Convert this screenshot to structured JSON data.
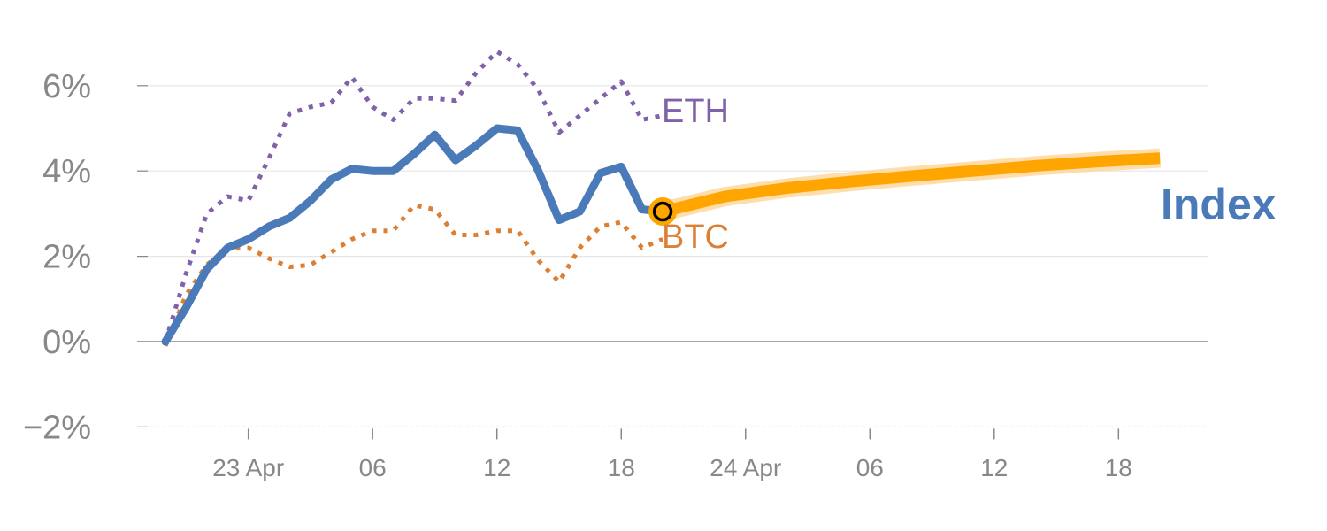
{
  "chart_data": {
    "type": "line",
    "title": "",
    "xlabel": "",
    "ylabel": "",
    "ylim": [
      -2,
      7
    ],
    "yticks": [
      -2,
      0,
      2,
      4,
      6
    ],
    "ytick_labels": [
      "−2%",
      "0%",
      "2%",
      "4%",
      "6%"
    ],
    "xticks": [
      {
        "i": 4,
        "label": "23 Apr"
      },
      {
        "i": 10,
        "label": "06"
      },
      {
        "i": 16,
        "label": "12"
      },
      {
        "i": 22,
        "label": "18"
      },
      {
        "i": 28,
        "label": "24 Apr"
      },
      {
        "i": 34,
        "label": "06"
      },
      {
        "i": 40,
        "label": "12"
      },
      {
        "i": 46,
        "label": "18"
      }
    ],
    "grid": true,
    "series": [
      {
        "name": "ETH",
        "color": "#8062a8",
        "style": "dotted",
        "x": [
          0,
          1,
          2,
          3,
          4,
          5,
          6,
          7,
          8,
          9,
          10,
          11,
          12,
          13,
          14,
          15,
          16,
          17,
          18,
          19,
          20,
          21,
          22,
          23,
          24
        ],
        "values": [
          0,
          1.6,
          3.0,
          3.4,
          3.3,
          4.3,
          5.35,
          5.5,
          5.6,
          6.2,
          5.5,
          5.2,
          5.7,
          5.7,
          5.65,
          6.3,
          6.8,
          6.5,
          5.9,
          4.9,
          5.3,
          5.7,
          6.1,
          5.2,
          5.3
        ]
      },
      {
        "name": "BTC",
        "color": "#dd7f33",
        "style": "dotted",
        "x": [
          0,
          1,
          2,
          3,
          4,
          5,
          6,
          7,
          8,
          9,
          10,
          11,
          12,
          13,
          14,
          15,
          16,
          17,
          18,
          19,
          20,
          21,
          22,
          23,
          24
        ],
        "values": [
          -0.1,
          1.1,
          1.8,
          2.2,
          2.2,
          1.95,
          1.75,
          1.8,
          2.1,
          2.4,
          2.6,
          2.6,
          3.2,
          3.1,
          2.5,
          2.5,
          2.6,
          2.6,
          1.9,
          1.4,
          2.2,
          2.7,
          2.8,
          2.2,
          2.4
        ]
      },
      {
        "name": "Index",
        "color": "#4b7ab9",
        "style": "solid",
        "x": [
          0,
          1,
          2,
          3,
          4,
          5,
          6,
          7,
          8,
          9,
          10,
          11,
          12,
          13,
          14,
          15,
          16,
          17,
          18,
          19,
          20,
          21,
          22,
          23,
          24
        ],
        "values": [
          0,
          0.8,
          1.7,
          2.2,
          2.4,
          2.7,
          2.9,
          3.3,
          3.8,
          4.05,
          4.0,
          4.0,
          4.4,
          4.85,
          4.25,
          4.6,
          5.0,
          4.95,
          4.0,
          2.85,
          3.05,
          3.95,
          4.1,
          3.1,
          3.05
        ]
      },
      {
        "name": "Index forecast",
        "color": "#ffa500",
        "style": "band",
        "x": [
          24,
          27,
          30,
          33,
          36,
          39,
          42,
          45,
          48
        ],
        "values": [
          3.05,
          3.4,
          3.6,
          3.75,
          3.88,
          4.0,
          4.12,
          4.22,
          4.3
        ]
      }
    ],
    "marker": {
      "i": 24,
      "value": 3.05,
      "color": "#ffa500"
    },
    "labels": {
      "eth": "ETH",
      "btc": "BTC",
      "index": "Index"
    }
  }
}
